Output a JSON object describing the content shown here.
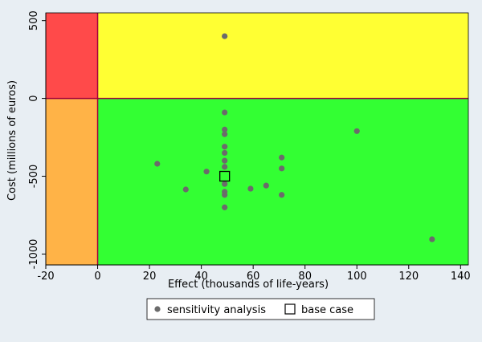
{
  "chart_data": {
    "type": "scatter",
    "title": "",
    "xlabel": "Effect (thousands of life-years)",
    "ylabel": "Cost (millions of euros)",
    "xlim": [
      -20,
      143
    ],
    "ylim": [
      -1070,
      550
    ],
    "x_ticks": [
      -20,
      0,
      20,
      40,
      60,
      80,
      100,
      120,
      140
    ],
    "y_ticks": [
      500,
      0,
      -500,
      -1000
    ],
    "grid": false,
    "legend_position": "bottom",
    "colors": {
      "quadrant_top_left": "#ff4a4a",
      "quadrant_top_right": "#ffff33",
      "quadrant_bottom_left": "#ffb347",
      "quadrant_bottom_right": "#33ff33",
      "axis_line": "#a0003c",
      "point": "#6b6b6b",
      "background": "#e8eef3"
    },
    "series": [
      {
        "name": "sensitivity analysis",
        "marker": "circle",
        "points": [
          {
            "x": 49,
            "y": 400
          },
          {
            "x": 49,
            "y": -90
          },
          {
            "x": 49,
            "y": -200
          },
          {
            "x": 49,
            "y": -230
          },
          {
            "x": 49,
            "y": -310
          },
          {
            "x": 49,
            "y": -350
          },
          {
            "x": 49,
            "y": -400
          },
          {
            "x": 49,
            "y": -440
          },
          {
            "x": 49,
            "y": -550
          },
          {
            "x": 49,
            "y": -600
          },
          {
            "x": 49,
            "y": -620
          },
          {
            "x": 49,
            "y": -700
          },
          {
            "x": 23,
            "y": -420
          },
          {
            "x": 34,
            "y": -585
          },
          {
            "x": 42,
            "y": -470
          },
          {
            "x": 59,
            "y": -580
          },
          {
            "x": 65,
            "y": -560
          },
          {
            "x": 71,
            "y": -380
          },
          {
            "x": 71,
            "y": -450
          },
          {
            "x": 71,
            "y": -620
          },
          {
            "x": 100,
            "y": -210
          },
          {
            "x": 129,
            "y": -905
          }
        ]
      },
      {
        "name": "base case",
        "marker": "square",
        "points": [
          {
            "x": 49,
            "y": -500
          }
        ]
      }
    ]
  }
}
